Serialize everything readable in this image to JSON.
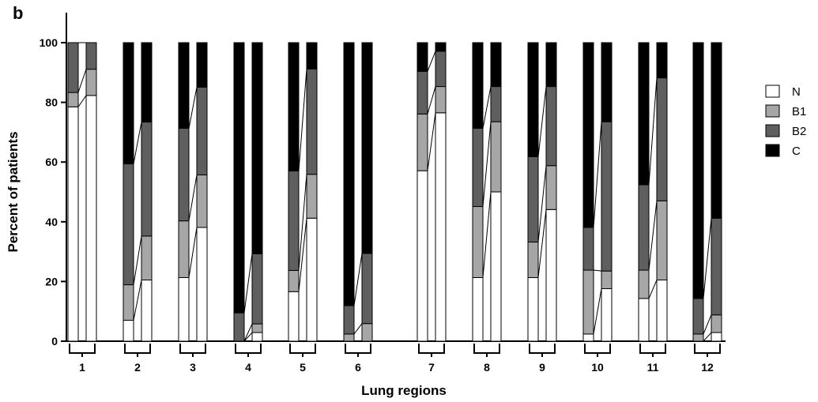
{
  "panel_label": "b",
  "chart_data": {
    "type": "bar",
    "stacked": true,
    "xlabel": "Lung regions",
    "ylabel": "Percent of patients",
    "ylim": [
      0,
      100
    ],
    "yticks": [
      0,
      20,
      40,
      60,
      80,
      100
    ],
    "categories": [
      "1",
      "2",
      "3",
      "4",
      "5",
      "6",
      "7",
      "8",
      "9",
      "10",
      "11",
      "12"
    ],
    "bars_per_category": 2,
    "legend_position": "right",
    "series": [
      {
        "name": "N",
        "color": "#ffffff",
        "values": [
          [
            78.5,
            82.3
          ],
          [
            7,
            20.5
          ],
          [
            21.3,
            38.1
          ],
          [
            0,
            2.9
          ],
          [
            16.6,
            41.2
          ],
          [
            0,
            0
          ],
          [
            57.1,
            76.5
          ],
          [
            21.3,
            50
          ],
          [
            21.3,
            44.1
          ],
          [
            2.4,
            17.6
          ],
          [
            14.3,
            20.5
          ],
          [
            0,
            2.9
          ]
        ]
      },
      {
        "name": "B1",
        "color": "#a6a6a6",
        "values": [
          [
            4.8,
            8.8
          ],
          [
            11.9,
            14.7
          ],
          [
            19,
            17.6
          ],
          [
            0,
            2.9
          ],
          [
            7.1,
            14.7
          ],
          [
            2.4,
            5.9
          ],
          [
            19,
            8.8
          ],
          [
            23.8,
            23.5
          ],
          [
            11.9,
            14.7
          ],
          [
            21.4,
            5.9
          ],
          [
            9.5,
            26.5
          ],
          [
            2.4,
            5.9
          ]
        ]
      },
      {
        "name": "B2",
        "color": "#5f5f5f",
        "values": [
          [
            16.7,
            8.9
          ],
          [
            40.5,
            38.2
          ],
          [
            31,
            29.4
          ],
          [
            9.5,
            23.5
          ],
          [
            33.3,
            35.3
          ],
          [
            9.5,
            23.5
          ],
          [
            14.3,
            11.8
          ],
          [
            26.2,
            11.8
          ],
          [
            28.6,
            26.5
          ],
          [
            14.3,
            50
          ],
          [
            28.6,
            41.2
          ],
          [
            11.9,
            32.4
          ]
        ]
      },
      {
        "name": "C",
        "color": "#000000",
        "values": [
          [
            0,
            0
          ],
          [
            40.6,
            26.6
          ],
          [
            28.7,
            14.9
          ],
          [
            90.5,
            70.7
          ],
          [
            43,
            8.8
          ],
          [
            88.1,
            70.6
          ],
          [
            9.6,
            2.9
          ],
          [
            28.7,
            14.7
          ],
          [
            38.2,
            14.7
          ],
          [
            61.9,
            26.5
          ],
          [
            47.6,
            11.8
          ],
          [
            85.7,
            58.8
          ]
        ]
      }
    ]
  }
}
